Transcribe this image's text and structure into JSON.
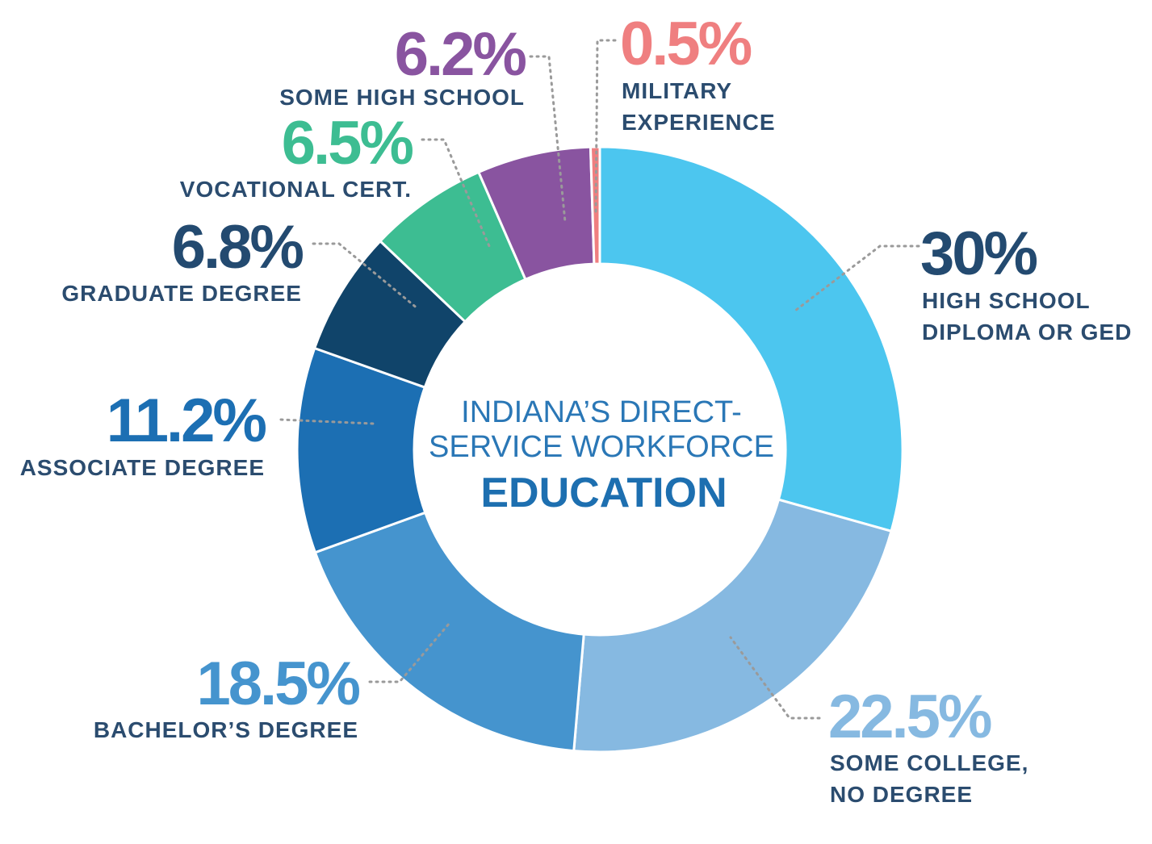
{
  "chart_data": {
    "type": "pie",
    "variant": "donut",
    "title_line1": "INDIANA’S DIRECT-",
    "title_line2": "SERVICE WORKFORCE",
    "title_emphasis": "EDUCATION",
    "categories": [
      "HIGH SCHOOL DIPLOMA OR GED",
      "SOME COLLEGE, NO DEGREE",
      "BACHELOR’S DEGREE",
      "ASSOCIATE DEGREE",
      "GRADUATE DEGREE",
      "VOCATIONAL CERT.",
      "SOME HIGH SCHOOL",
      "MILITARY EXPERIENCE"
    ],
    "values": [
      30,
      22.5,
      18.5,
      11.2,
      6.8,
      6.5,
      6.2,
      0.5
    ],
    "slices": [
      {
        "value": 30,
        "pct_label": "30%",
        "label_lines": [
          "HIGH SCHOOL",
          "DIPLOMA OR GED"
        ],
        "color": "#4cc6ef",
        "pct_color": "#234a70"
      },
      {
        "value": 22.5,
        "pct_label": "22.5%",
        "label_lines": [
          "SOME COLLEGE,",
          "NO DEGREE"
        ],
        "color": "#86b9e1",
        "pct_color": "#86b9e1"
      },
      {
        "value": 18.5,
        "pct_label": "18.5%",
        "label_lines": [
          "BACHELOR’S DEGREE"
        ],
        "color": "#4594ce",
        "pct_color": "#4594ce"
      },
      {
        "value": 11.2,
        "pct_label": "11.2%",
        "label_lines": [
          "ASSOCIATE DEGREE"
        ],
        "color": "#1c6fb3",
        "pct_color": "#1c6fb3"
      },
      {
        "value": 6.8,
        "pct_label": "6.8%",
        "label_lines": [
          "GRADUATE DEGREE"
        ],
        "color": "#10446a",
        "pct_color": "#234a70"
      },
      {
        "value": 6.5,
        "pct_label": "6.5%",
        "label_lines": [
          "VOCATIONAL CERT."
        ],
        "color": "#3dbd92",
        "pct_color": "#3dbd92"
      },
      {
        "value": 6.2,
        "pct_label": "6.2%",
        "label_lines": [
          "SOME HIGH SCHOOL"
        ],
        "color": "#8954a0",
        "pct_color": "#8954a0"
      },
      {
        "value": 0.5,
        "pct_label": "0.5%",
        "label_lines": [
          "MILITARY",
          "EXPERIENCE"
        ],
        "color": "#ef7f80",
        "pct_color": "#ef7f80"
      }
    ],
    "label_color": "#2b4c6f"
  }
}
